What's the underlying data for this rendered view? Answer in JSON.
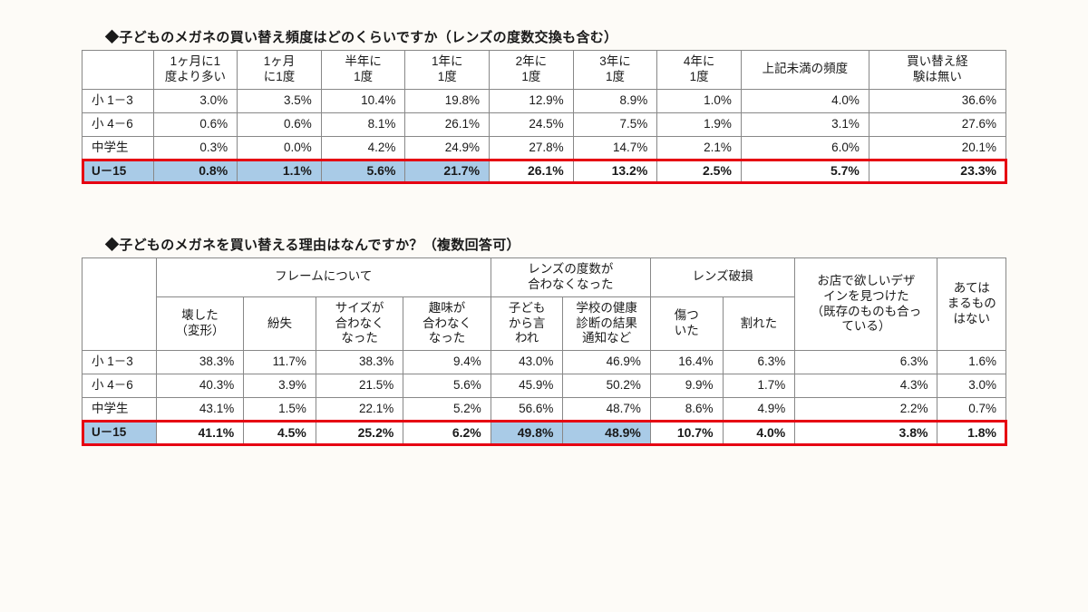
{
  "colors": {
    "page_bg": "#fdfbf7",
    "border": "#888888",
    "highlight_border": "#e60012",
    "highlight_fill": "#a9cbe7",
    "text": "#1a1a1a"
  },
  "tables": [
    {
      "caption": "◆子どものメガネの買い替え頻度はどのくらいですか（レンズの度数交換も含む）",
      "columns": [
        "",
        "1ヶ月に1\n度より多い",
        "1ヶ月\nに1度",
        "半年に\n1度",
        "1年に\n1度",
        "2年に\n1度",
        "3年に\n1度",
        "4年に\n1度",
        "上記未満の頻度",
        "買い替え経\n験は無い"
      ],
      "rows": [
        {
          "label": "小 1－3",
          "vals": [
            "3.0%",
            "3.5%",
            "10.4%",
            "19.8%",
            "12.9%",
            "8.9%",
            "1.0%",
            "4.0%",
            "36.6%"
          ],
          "emph": false,
          "hl": []
        },
        {
          "label": "小 4－6",
          "vals": [
            "0.6%",
            "0.6%",
            "8.1%",
            "26.1%",
            "24.5%",
            "7.5%",
            "1.9%",
            "3.1%",
            "27.6%"
          ],
          "emph": false,
          "hl": []
        },
        {
          "label": "中学生",
          "vals": [
            "0.3%",
            "0.0%",
            "4.2%",
            "24.9%",
            "27.8%",
            "14.7%",
            "2.1%",
            "6.0%",
            "20.1%"
          ],
          "emph": false,
          "hl": []
        },
        {
          "label": "U－15",
          "vals": [
            "0.8%",
            "1.1%",
            "5.6%",
            "21.7%",
            "26.1%",
            "13.2%",
            "2.5%",
            "5.7%",
            "23.3%"
          ],
          "emph": true,
          "hl": [
            0,
            1,
            2,
            3
          ]
        }
      ]
    },
    {
      "caption": "◆子どものメガネを買い替える理由はなんですか？（複数回答可）",
      "group_headers": [
        {
          "label": "フレームについて",
          "span": 4
        },
        {
          "label": "レンズの度数が\n合わなくなった",
          "span": 2
        },
        {
          "label": "レンズ破損",
          "span": 2
        }
      ],
      "columns": [
        "",
        "壊した\n（変形）",
        "紛失",
        "サイズが\n合わなく\nなった",
        "趣味が\n合わなく\nなった",
        "子ども\nから言\nわれ",
        "学校の健康\n診断の結果\n通知など",
        "傷つ\nいた",
        "割れた",
        "お店で欲しいデザ\nインを見つけた\n（既存のものも合っ\nている）",
        "あては\nまるもの\nはない"
      ],
      "rows": [
        {
          "label": "小 1－3",
          "vals": [
            "38.3%",
            "11.7%",
            "38.3%",
            "9.4%",
            "43.0%",
            "46.9%",
            "16.4%",
            "6.3%",
            "6.3%",
            "1.6%"
          ],
          "emph": false,
          "hl": []
        },
        {
          "label": "小 4－6",
          "vals": [
            "40.3%",
            "3.9%",
            "21.5%",
            "5.6%",
            "45.9%",
            "50.2%",
            "9.9%",
            "1.7%",
            "4.3%",
            "3.0%"
          ],
          "emph": false,
          "hl": []
        },
        {
          "label": "中学生",
          "vals": [
            "43.1%",
            "1.5%",
            "22.1%",
            "5.2%",
            "56.6%",
            "48.7%",
            "8.6%",
            "4.9%",
            "2.2%",
            "0.7%"
          ],
          "emph": false,
          "hl": []
        },
        {
          "label": "U－15",
          "vals": [
            "41.1%",
            "4.5%",
            "25.2%",
            "6.2%",
            "49.8%",
            "48.9%",
            "10.7%",
            "4.0%",
            "3.8%",
            "1.8%"
          ],
          "emph": true,
          "hl": [
            4,
            5
          ]
        }
      ]
    }
  ]
}
